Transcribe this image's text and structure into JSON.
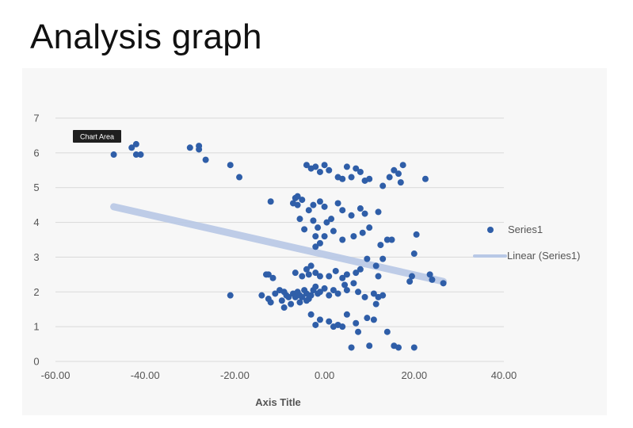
{
  "page": {
    "title": "Analysis graph"
  },
  "tooltip": {
    "label": "Chart Area"
  },
  "chart_data": {
    "type": "scatter",
    "title": "",
    "xlabel": "Axis Title",
    "ylabel": "",
    "xlim": [
      -60,
      40
    ],
    "ylim": [
      0,
      7
    ],
    "x_ticks": [
      -60,
      -40,
      -20,
      0,
      20,
      40
    ],
    "x_tick_labels": [
      "-60.00",
      "-40.00",
      "-20.00",
      "0.00",
      "20.00",
      "40.00"
    ],
    "y_ticks": [
      0,
      1,
      2,
      3,
      4,
      5,
      6,
      7
    ],
    "y_tick_labels": [
      "0",
      "1",
      "2",
      "3",
      "4",
      "5",
      "6",
      "7"
    ],
    "grid": "horizontal",
    "legend_position": "right",
    "colors": {
      "series": "#2f5ea8",
      "trendline": "#b8c8e6"
    },
    "series": [
      {
        "name": "Series1",
        "points": [
          [
            -47,
            5.95
          ],
          [
            -43,
            6.15
          ],
          [
            -42,
            6.25
          ],
          [
            -42,
            5.95
          ],
          [
            -41,
            5.95
          ],
          [
            -30,
            6.15
          ],
          [
            -28,
            6.2
          ],
          [
            -28,
            6.1
          ],
          [
            -26.5,
            5.8
          ],
          [
            -21,
            5.65
          ],
          [
            -19,
            5.3
          ],
          [
            -12,
            4.6
          ],
          [
            -4,
            5.65
          ],
          [
            -3,
            5.55
          ],
          [
            -2,
            5.6
          ],
          [
            -1,
            5.45
          ],
          [
            0,
            5.65
          ],
          [
            1,
            5.5
          ],
          [
            3,
            5.3
          ],
          [
            4,
            5.25
          ],
          [
            5,
            5.6
          ],
          [
            6,
            5.3
          ],
          [
            7,
            5.55
          ],
          [
            8,
            5.45
          ],
          [
            9,
            5.2
          ],
          [
            10,
            5.25
          ],
          [
            13,
            5.05
          ],
          [
            14.5,
            5.3
          ],
          [
            15.5,
            5.5
          ],
          [
            16.5,
            5.4
          ],
          [
            17,
            5.15
          ],
          [
            17.5,
            5.65
          ],
          [
            22.5,
            5.25
          ],
          [
            -7,
            4.55
          ],
          [
            -6.5,
            4.7
          ],
          [
            -6,
            4.75
          ],
          [
            -5,
            4.65
          ],
          [
            -6,
            4.5
          ],
          [
            -3.5,
            4.35
          ],
          [
            -2.5,
            4.5
          ],
          [
            -1,
            4.6
          ],
          [
            0,
            4.45
          ],
          [
            1.5,
            4.1
          ],
          [
            -5.5,
            4.1
          ],
          [
            -2.5,
            4.05
          ],
          [
            -1.5,
            3.85
          ],
          [
            0.5,
            4.0
          ],
          [
            3,
            4.55
          ],
          [
            4,
            4.35
          ],
          [
            6,
            4.2
          ],
          [
            8,
            4.4
          ],
          [
            9,
            4.25
          ],
          [
            12,
            4.3
          ],
          [
            10,
            3.85
          ],
          [
            -4.5,
            3.8
          ],
          [
            -2,
            3.6
          ],
          [
            -1,
            3.4
          ],
          [
            -2,
            3.3
          ],
          [
            0,
            3.6
          ],
          [
            2,
            3.75
          ],
          [
            4,
            3.5
          ],
          [
            6.5,
            3.6
          ],
          [
            8.5,
            3.7
          ],
          [
            12.5,
            3.35
          ],
          [
            14,
            3.5
          ],
          [
            15,
            3.5
          ],
          [
            20.5,
            3.65
          ],
          [
            20,
            3.1
          ],
          [
            -13,
            2.5
          ],
          [
            -12.5,
            2.5
          ],
          [
            -11.5,
            2.4
          ],
          [
            -6.5,
            2.55
          ],
          [
            -5,
            2.45
          ],
          [
            -4,
            2.65
          ],
          [
            -3,
            2.75
          ],
          [
            -3.5,
            2.5
          ],
          [
            -2,
            2.55
          ],
          [
            -1,
            2.45
          ],
          [
            1,
            2.45
          ],
          [
            2.5,
            2.6
          ],
          [
            4,
            2.4
          ],
          [
            5,
            2.5
          ],
          [
            7,
            2.55
          ],
          [
            8,
            2.65
          ],
          [
            11.5,
            2.75
          ],
          [
            12,
            2.45
          ],
          [
            19,
            2.3
          ],
          [
            19.5,
            2.45
          ],
          [
            23.5,
            2.5
          ],
          [
            24,
            2.35
          ],
          [
            26.5,
            2.25
          ],
          [
            13,
            2.95
          ],
          [
            9.5,
            2.95
          ],
          [
            -21,
            1.9
          ],
          [
            -14,
            1.9
          ],
          [
            -12.5,
            1.8
          ],
          [
            -11,
            1.95
          ],
          [
            -10,
            2.05
          ],
          [
            -9,
            2.0
          ],
          [
            -8.5,
            1.9
          ],
          [
            -8,
            1.85
          ],
          [
            -7,
            1.95
          ],
          [
            -6.5,
            1.85
          ],
          [
            -6,
            2.0
          ],
          [
            -5.5,
            1.9
          ],
          [
            -5,
            1.85
          ],
          [
            -4.5,
            2.05
          ],
          [
            -4,
            1.95
          ],
          [
            -3.5,
            1.8
          ],
          [
            -3,
            1.9
          ],
          [
            -2.5,
            2.05
          ],
          [
            -2,
            2.15
          ],
          [
            -1.5,
            1.95
          ],
          [
            -1,
            2.0
          ],
          [
            0,
            2.1
          ],
          [
            1,
            1.9
          ],
          [
            2,
            2.05
          ],
          [
            3,
            1.95
          ],
          [
            4.5,
            2.2
          ],
          [
            5,
            2.05
          ],
          [
            6.5,
            2.25
          ],
          [
            7.5,
            2.0
          ],
          [
            9,
            1.85
          ],
          [
            11,
            1.95
          ],
          [
            12,
            1.85
          ],
          [
            13,
            1.9
          ],
          [
            -9.5,
            1.75
          ],
          [
            -12,
            1.7
          ],
          [
            -7.5,
            1.65
          ],
          [
            -5.5,
            1.7
          ],
          [
            -4,
            1.75
          ],
          [
            -9,
            1.55
          ],
          [
            -3,
            1.35
          ],
          [
            5,
            1.35
          ],
          [
            9.5,
            1.25
          ],
          [
            11.5,
            1.65
          ],
          [
            11,
            1.2
          ],
          [
            -2,
            1.05
          ],
          [
            -1,
            1.2
          ],
          [
            1,
            1.15
          ],
          [
            2,
            1.0
          ],
          [
            3,
            1.05
          ],
          [
            4,
            1.0
          ],
          [
            7,
            1.1
          ],
          [
            7.5,
            0.85
          ],
          [
            14,
            0.85
          ],
          [
            6,
            0.4
          ],
          [
            10,
            0.45
          ],
          [
            15.5,
            0.45
          ],
          [
            16.5,
            0.4
          ],
          [
            20,
            0.4
          ]
        ]
      }
    ],
    "trendline": {
      "name": "Linear (Series1)",
      "type": "linear",
      "from": [
        -47,
        4.45
      ],
      "to": [
        26.5,
        2.3
      ]
    }
  }
}
